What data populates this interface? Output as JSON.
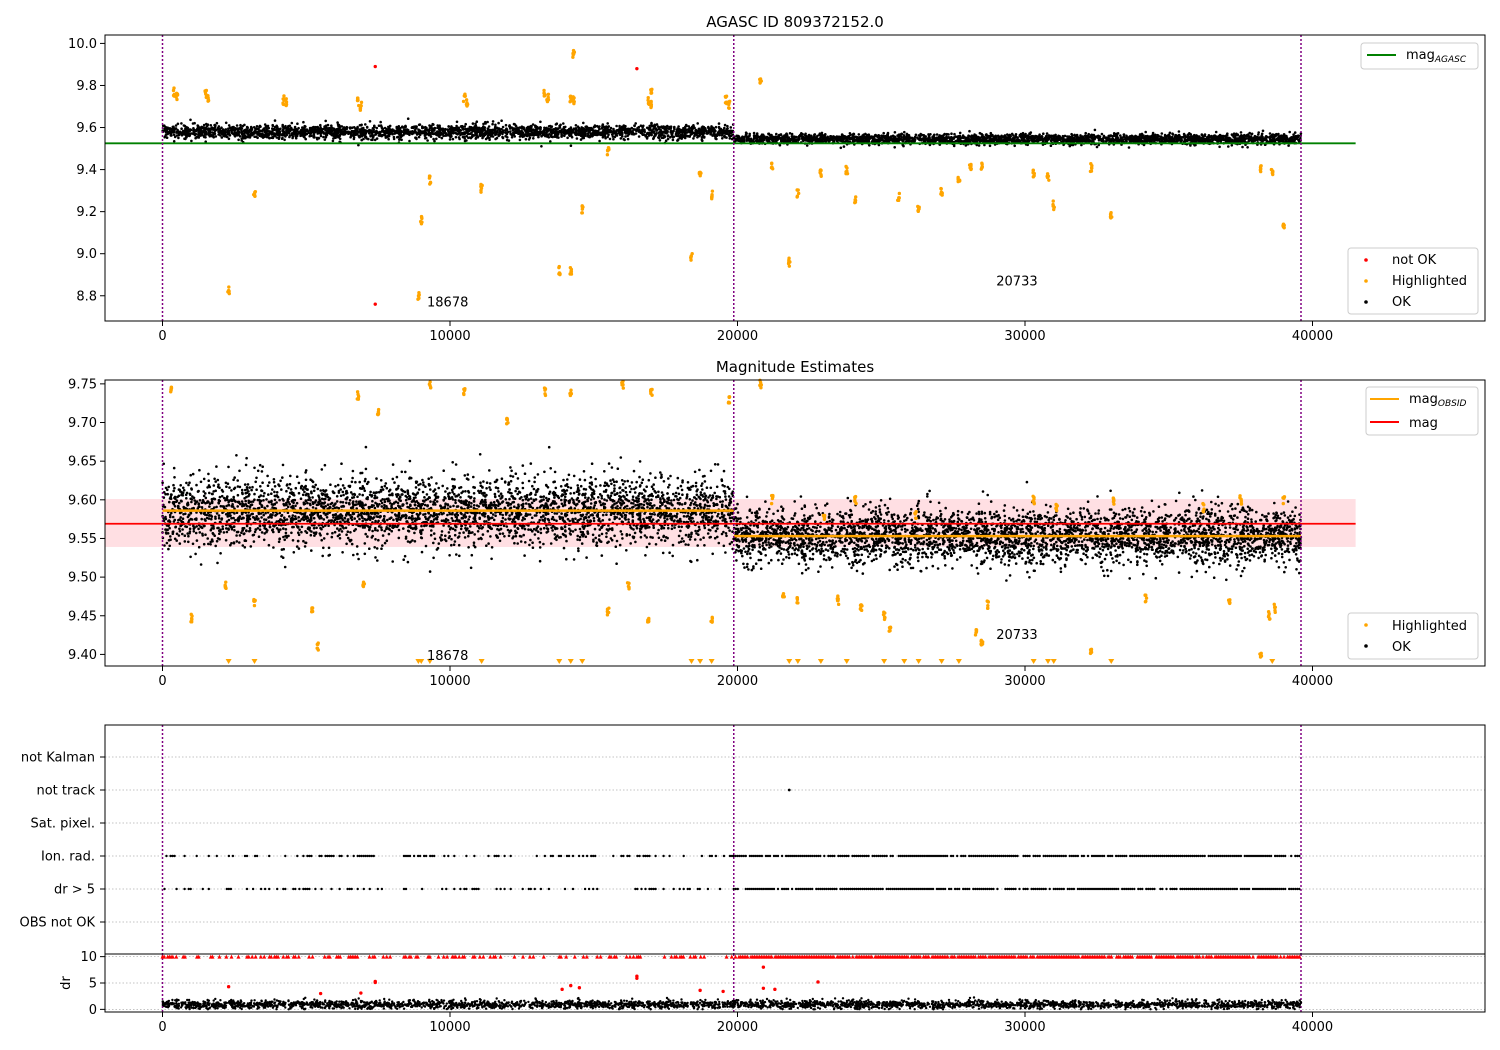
{
  "chart_data": [
    {
      "type": "scatter",
      "title": "AGASC ID 809372152.0",
      "xlabel": "",
      "ylabel": "",
      "xlim": [
        -2000,
        46000
      ],
      "ylim": [
        8.68,
        10.04
      ],
      "xticks": [
        0,
        10000,
        20000,
        30000,
        40000
      ],
      "xtick_labels": [
        "0",
        "10000",
        "20000",
        "30000",
        "40000"
      ],
      "yticks": [
        8.8,
        9.0,
        9.2,
        9.4,
        9.6,
        9.8,
        10.0
      ],
      "ytick_labels": [
        "8.8",
        "9.0",
        "9.2",
        "9.4",
        "9.6",
        "9.8",
        "10.0"
      ],
      "vlines": [
        0,
        19870,
        39600
      ],
      "obsid_labels": [
        {
          "text": "18678",
          "x": 9200,
          "y": 8.75
        },
        {
          "text": "20733",
          "x": 29000,
          "y": 8.85
        }
      ],
      "reference_line": {
        "name": "mag_AGASC",
        "value": 9.525,
        "x_range": [
          -2000,
          41500
        ],
        "color": "#008000"
      },
      "series": [
        {
          "name": "OK",
          "color": "#000000",
          "segments": [
            {
              "x": [
                0,
                19870
              ],
              "center": 9.58,
              "spread": 0.03
            },
            {
              "x": [
                19870,
                39600
              ],
              "center": 9.545,
              "spread": 0.022
            }
          ]
        },
        {
          "name": "Highlighted",
          "color": "#ffa500",
          "points": [
            [
              2300,
              8.83
            ],
            [
              3200,
              9.29
            ],
            [
              8900,
              8.8
            ],
            [
              9000,
              9.16
            ],
            [
              9300,
              9.35
            ],
            [
              11100,
              9.31
            ],
            [
              13800,
              8.92
            ],
            [
              14200,
              8.92
            ],
            [
              14300,
              9.95
            ],
            [
              14600,
              9.21
            ],
            [
              15500,
              9.49
            ],
            [
              17000,
              9.78
            ],
            [
              18400,
              8.98
            ],
            [
              18700,
              9.37
            ],
            [
              19100,
              9.28
            ],
            [
              20800,
              9.83
            ],
            [
              21200,
              9.42
            ],
            [
              21800,
              8.96
            ],
            [
              22100,
              9.29
            ],
            [
              22900,
              9.38
            ],
            [
              23800,
              9.4
            ],
            [
              24100,
              9.25
            ],
            [
              25600,
              9.27
            ],
            [
              26300,
              9.21
            ],
            [
              27100,
              9.29
            ],
            [
              27700,
              9.36
            ],
            [
              28100,
              9.42
            ],
            [
              28500,
              9.41
            ],
            [
              30300,
              9.38
            ],
            [
              30800,
              9.37
            ],
            [
              31000,
              9.23
            ],
            [
              32300,
              9.41
            ],
            [
              33000,
              9.18
            ],
            [
              38200,
              9.4
            ],
            [
              38600,
              9.39
            ],
            [
              39000,
              9.13
            ],
            [
              4200,
              9.73
            ],
            [
              4300,
              9.72
            ],
            [
              6800,
              9.72
            ],
            [
              6900,
              9.7
            ],
            [
              10500,
              9.74
            ],
            [
              10600,
              9.72
            ],
            [
              13300,
              9.76
            ],
            [
              13400,
              9.74
            ],
            [
              14200,
              9.74
            ],
            [
              14300,
              9.73
            ],
            [
              16900,
              9.73
            ],
            [
              17000,
              9.71
            ],
            [
              19600,
              9.73
            ],
            [
              19700,
              9.71
            ],
            [
              1500,
              9.76
            ],
            [
              1600,
              9.74
            ],
            [
              400,
              9.77
            ],
            [
              500,
              9.75
            ]
          ]
        },
        {
          "name": "not OK",
          "color": "#ff0000",
          "points": [
            [
              7400,
              9.89
            ],
            [
              7400,
              8.76
            ],
            [
              16500,
              9.88
            ]
          ]
        }
      ],
      "legend_top": {
        "position": "upper right",
        "entries": [
          "mag_AGASC"
        ]
      },
      "legend_bottom": {
        "position": "lower right",
        "entries": [
          "not OK",
          "Highlighted",
          "OK"
        ]
      },
      "grid": false
    },
    {
      "type": "scatter",
      "title": "Magnitude Estimates",
      "xlabel": "",
      "ylabel": "",
      "xlim": [
        -2000,
        46000
      ],
      "ylim": [
        9.385,
        9.755
      ],
      "xticks": [
        0,
        10000,
        20000,
        30000,
        40000
      ],
      "xtick_labels": [
        "0",
        "10000",
        "20000",
        "30000",
        "40000"
      ],
      "yticks": [
        9.4,
        9.45,
        9.5,
        9.55,
        9.6,
        9.65,
        9.7,
        9.75
      ],
      "ytick_labels": [
        "9.40",
        "9.45",
        "9.50",
        "9.55",
        "9.60",
        "9.65",
        "9.70",
        "9.75"
      ],
      "vlines": [
        0,
        19870,
        39600
      ],
      "obsid_labels": [
        {
          "text": "18678",
          "x": 9200,
          "y": 9.393
        },
        {
          "text": "20733",
          "x": 29000,
          "y": 9.42
        }
      ],
      "mag_band": {
        "low": 9.539,
        "high": 9.601,
        "x_range": [
          -2000,
          41500
        ],
        "color": "#ffc0c8"
      },
      "mag_line": {
        "name": "mag",
        "value": 9.569,
        "color": "#ff0000"
      },
      "obsid_lines": [
        {
          "name": "mag_OBSID",
          "x": [
            0,
            19870
          ],
          "value": 9.586,
          "color": "#ffa500"
        },
        {
          "name": "mag_OBSID",
          "x": [
            19870,
            39600
          ],
          "value": 9.553,
          "color": "#ffa500"
        }
      ],
      "series": [
        {
          "name": "OK",
          "color": "#000000",
          "segments": [
            {
              "x": [
                0,
                19870
              ],
              "center": 9.585,
              "spread": 0.04
            },
            {
              "x": [
                19870,
                39600
              ],
              "center": 9.553,
              "spread": 0.033
            }
          ]
        },
        {
          "name": "Highlighted",
          "color": "#ffa500",
          "points": [
            [
              300,
              9.745
            ],
            [
              1000,
              9.447
            ],
            [
              2200,
              9.49
            ],
            [
              3200,
              9.467
            ],
            [
              5200,
              9.46
            ],
            [
              5400,
              9.41
            ],
            [
              6800,
              9.735
            ],
            [
              7000,
              9.49
            ],
            [
              7500,
              9.715
            ],
            [
              9300,
              9.75
            ],
            [
              10500,
              9.74
            ],
            [
              12000,
              9.7
            ],
            [
              13300,
              9.74
            ],
            [
              14200,
              9.74
            ],
            [
              15500,
              9.455
            ],
            [
              16000,
              9.75
            ],
            [
              16200,
              9.49
            ],
            [
              16900,
              9.445
            ],
            [
              17000,
              9.74
            ],
            [
              19100,
              9.447
            ],
            [
              19700,
              9.73
            ],
            [
              20800,
              9.75
            ],
            [
              21200,
              9.6
            ],
            [
              21600,
              9.48
            ],
            [
              22100,
              9.47
            ],
            [
              23000,
              9.58
            ],
            [
              23500,
              9.47
            ],
            [
              24100,
              9.6
            ],
            [
              24300,
              9.46
            ],
            [
              25100,
              9.45
            ],
            [
              25300,
              9.435
            ],
            [
              26200,
              9.58
            ],
            [
              28300,
              9.43
            ],
            [
              28500,
              9.417
            ],
            [
              28700,
              9.465
            ],
            [
              30300,
              9.6
            ],
            [
              31100,
              9.59
            ],
            [
              32300,
              9.405
            ],
            [
              33100,
              9.6
            ],
            [
              34200,
              9.473
            ],
            [
              36200,
              9.59
            ],
            [
              37100,
              9.467
            ],
            [
              37500,
              9.6
            ],
            [
              38200,
              9.4
            ],
            [
              38500,
              9.45
            ],
            [
              38700,
              9.46
            ],
            [
              39000,
              9.6
            ]
          ]
        }
      ],
      "clipped_low_x": [
        2300,
        3200,
        8900,
        9000,
        9300,
        11100,
        13800,
        14200,
        14600,
        18400,
        18700,
        19100,
        21800,
        22100,
        22900,
        23800,
        25100,
        25800,
        26300,
        27100,
        27700,
        30300,
        30800,
        31000,
        33000,
        38600
      ],
      "legend_top": {
        "position": "upper right",
        "entries": [
          "mag_OBSID",
          "mag"
        ]
      },
      "legend_bottom": {
        "position": "lower right",
        "entries": [
          "Highlighted",
          "OK"
        ]
      },
      "grid": false
    },
    {
      "type": "scatter",
      "title": "",
      "xlabel": "",
      "ylabel": "",
      "xlim": [
        -2000,
        46000
      ],
      "categories": [
        "OBS not OK",
        "dr > 5",
        "Ion. rad.",
        "Sat. pixel.",
        "not track",
        "not Kalman"
      ],
      "vlines": [
        0,
        19870,
        39600
      ],
      "flag_points": [
        {
          "category": "not track",
          "x": [
            21800
          ]
        },
        {
          "category": "Ion. rad.",
          "ranges": [
            [
              0,
              19870
            ],
            [
              19870,
              39600
            ]
          ],
          "density": [
            0.35,
            0.85
          ]
        },
        {
          "category": "dr > 5",
          "ranges": [
            [
              0,
              19870
            ],
            [
              19870,
              39600
            ]
          ],
          "density": [
            0.35,
            0.85
          ]
        }
      ],
      "grid": true
    },
    {
      "type": "scatter",
      "title": "",
      "xlabel": "",
      "ylabel": "dr",
      "xlim": [
        -2000,
        46000
      ],
      "ylim": [
        -0.5,
        10.5
      ],
      "xticks": [
        0,
        10000,
        20000,
        30000,
        40000
      ],
      "xtick_labels": [
        "0",
        "10000",
        "20000",
        "30000",
        "40000"
      ],
      "yticks": [
        0,
        5,
        10
      ],
      "ytick_labels": [
        "0",
        "5",
        "10"
      ],
      "vlines": [
        0,
        19870,
        39600
      ],
      "series": [
        {
          "name": "OK",
          "color": "#000000",
          "segments": [
            {
              "x": [
                0,
                39600
              ],
              "center": 0.9,
              "spread": 0.7
            }
          ]
        },
        {
          "name": "not OK",
          "color": "#ff0000",
          "points": [
            [
              2300,
              4.3
            ],
            [
              5500,
              3.0
            ],
            [
              6900,
              3.1
            ],
            [
              7400,
              5.1
            ],
            [
              7400,
              5.3
            ],
            [
              13900,
              3.8
            ],
            [
              14200,
              4.5
            ],
            [
              14500,
              4.1
            ],
            [
              16500,
              5.9
            ],
            [
              16500,
              6.3
            ],
            [
              18700,
              3.6
            ],
            [
              19500,
              3.4
            ],
            [
              20900,
              4.0
            ],
            [
              20900,
              8.0
            ],
            [
              21300,
              3.8
            ],
            [
              22800,
              5.2
            ]
          ]
        },
        {
          "name": "clipped",
          "color": "#ff0000",
          "ranges": [
            [
              0,
              19870
            ],
            [
              19870,
              39600
            ]
          ],
          "value": 10,
          "density": [
            0.35,
            0.9
          ]
        }
      ],
      "grid": true
    }
  ]
}
